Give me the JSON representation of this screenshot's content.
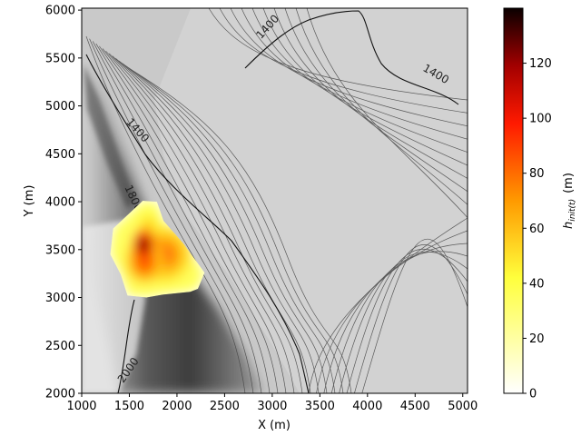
{
  "chart_data": {
    "type": "heatmap",
    "title": "",
    "xlabel": "X (m)",
    "ylabel": "Y (m)",
    "xlim": [
      1000,
      5050
    ],
    "ylim": [
      2000,
      6020
    ],
    "xticks": [
      1000,
      1500,
      2000,
      2500,
      3000,
      3500,
      4000,
      4500,
      5000
    ],
    "yticks": [
      2000,
      2500,
      3000,
      3500,
      4000,
      4500,
      5000,
      5500,
      6000
    ],
    "background": "grayscale hillshade with elevation contour lines",
    "contour_labels": [
      {
        "text": "1400",
        "x": 2980,
        "y": 5800,
        "angle": -48
      },
      {
        "text": "1400",
        "x": 4700,
        "y": 5300,
        "angle": 30
      },
      {
        "text": "1400",
        "x": 1560,
        "y": 4720,
        "angle": 48
      },
      {
        "text": "1800",
        "x": 1510,
        "y": 4020,
        "angle": 65
      },
      {
        "text": "2000",
        "x": 1520,
        "y": 2220,
        "angle": -55
      }
    ],
    "heatmap_polygon": [
      [
        1330,
        3720
      ],
      [
        1640,
        4010
      ],
      [
        1790,
        4000
      ],
      [
        1860,
        3800
      ],
      [
        2070,
        3560
      ],
      [
        2290,
        3260
      ],
      [
        2220,
        3090
      ],
      [
        2140,
        3060
      ],
      [
        1850,
        3030
      ],
      [
        1680,
        3000
      ],
      [
        1480,
        3020
      ],
      [
        1410,
        3240
      ],
      [
        1300,
        3450
      ]
    ],
    "heatmap_peaks": [
      {
        "x": 1650,
        "y": 3550,
        "value": 140,
        "rx": 120,
        "ry": 170
      },
      {
        "x": 1860,
        "y": 3450,
        "value": 85,
        "rx": 300,
        "ry": 300
      },
      {
        "x": 1660,
        "y": 3380,
        "value": 95,
        "rx": 200,
        "ry": 240
      },
      {
        "x": 1700,
        "y": 3750,
        "value": 60,
        "rx": 150,
        "ry": 180
      }
    ],
    "colorbar": {
      "label": "h_init(t) (m)",
      "label_main": "h",
      "label_sub": "init(t)",
      "label_unit": "(m)",
      "cmap": "hot_r",
      "vmin": 0,
      "vmax": 140,
      "ticks": [
        0,
        20,
        40,
        60,
        80,
        100,
        120
      ]
    }
  }
}
